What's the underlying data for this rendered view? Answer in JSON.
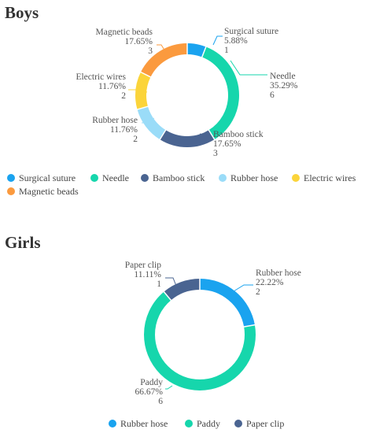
{
  "chart_data": [
    {
      "type": "pie",
      "title": "Boys",
      "categories": [
        "Surgical suture",
        "Needle",
        "Bamboo stick",
        "Rubber hose",
        "Electric wires",
        "Magnetic beads"
      ],
      "values": [
        1,
        6,
        3,
        2,
        2,
        3
      ],
      "percent_labels": [
        "5.88%",
        "35.29%",
        "17.65%",
        "11.76%",
        "11.76%",
        "17.65%"
      ],
      "colors": [
        "#1aa3ef",
        "#16d6ac",
        "#4a6491",
        "#9adcf8",
        "#fbd43a",
        "#fb9a3e"
      ],
      "legend_position": "bottom"
    },
    {
      "type": "pie",
      "title": "Girls",
      "categories": [
        "Rubber hose",
        "Paddy",
        "Paper clip"
      ],
      "values": [
        2,
        6,
        1
      ],
      "percent_labels": [
        "22.22%",
        "66.67%",
        "11.11%"
      ],
      "colors": [
        "#1aa3ef",
        "#16d6ac",
        "#4a6491"
      ],
      "legend_position": "bottom"
    }
  ]
}
